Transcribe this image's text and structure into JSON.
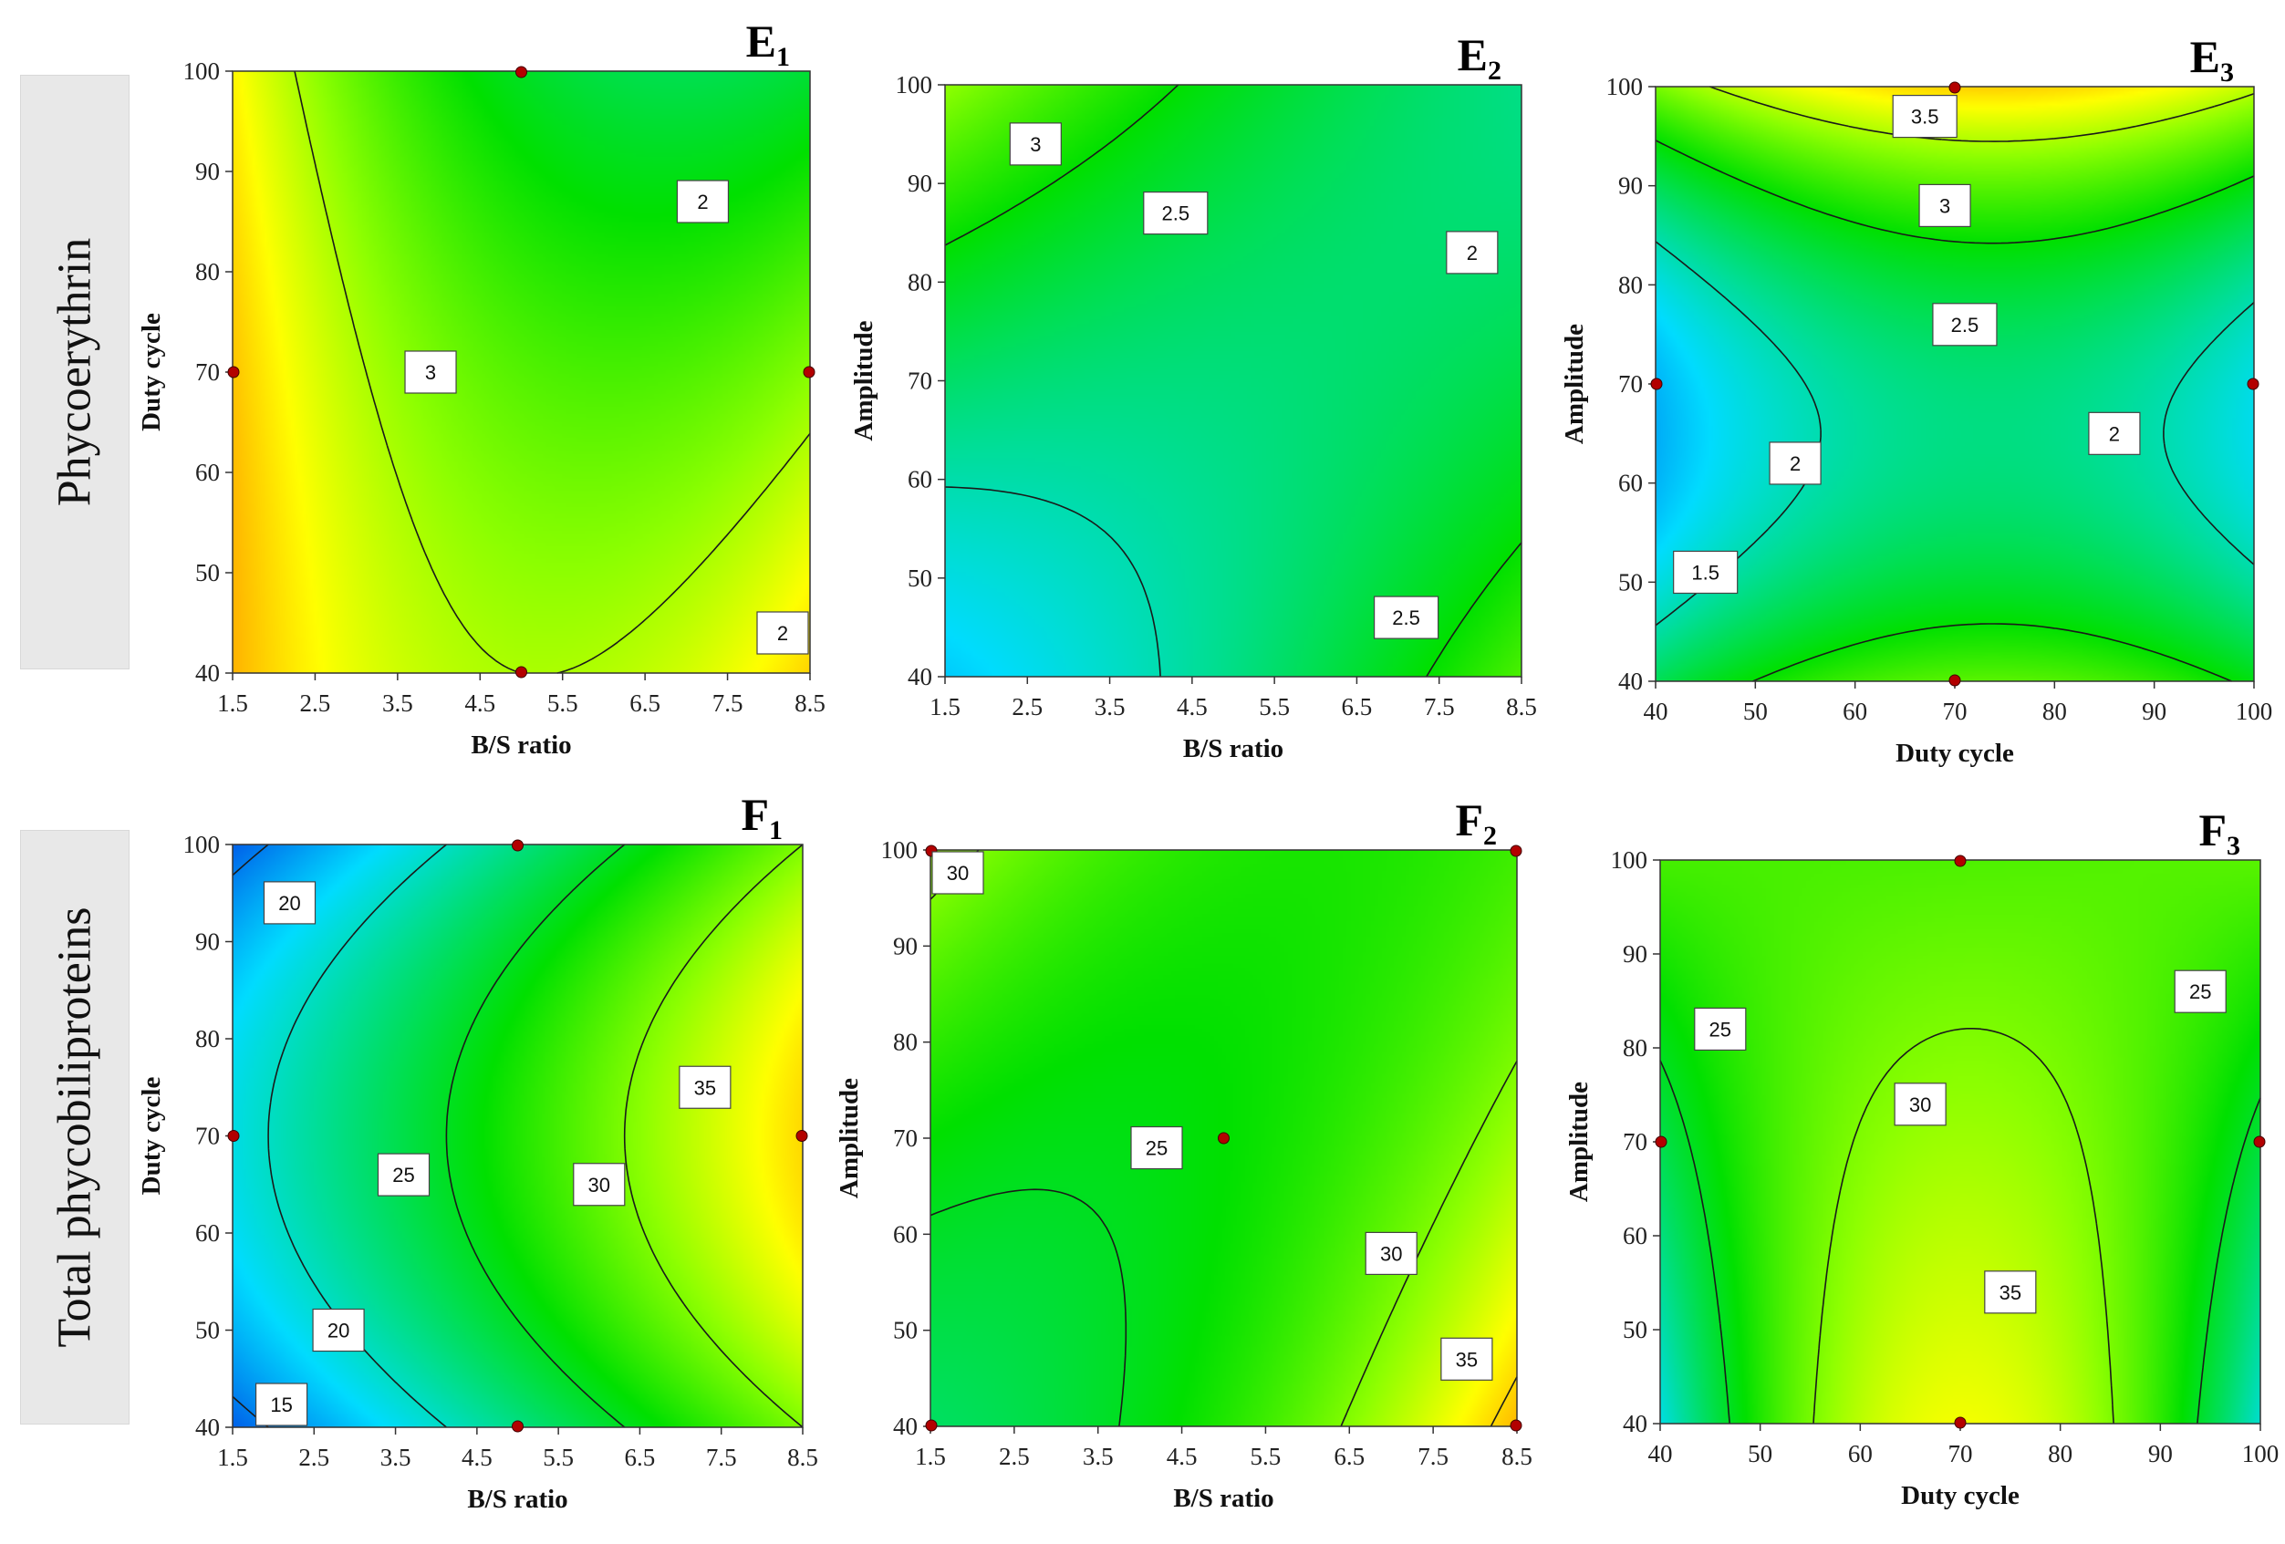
{
  "row_labels": [
    "Phycoerythrin",
    "Total phycobiliproteins"
  ],
  "chart_data": [
    {
      "id": "E1",
      "type": "contour",
      "title_main": "E",
      "title_sub": "1",
      "xlabel": "B/S ratio",
      "ylabel": "Duty cycle",
      "xlim": [
        1.5,
        8.5
      ],
      "ylim": [
        40,
        100
      ],
      "xticks": [
        "1.5",
        "2.5",
        "3.5",
        "4.5",
        "5.5",
        "6.5",
        "7.5",
        "8.5"
      ],
      "yticks": [
        "40",
        "50",
        "60",
        "70",
        "80",
        "90",
        "100"
      ],
      "model": {
        "c": 2.75,
        "x": -0.25,
        "y": -0.3,
        "xx": 0.4,
        "yy": -0.05,
        "xy": -0.2,
        "x3": 0,
        "x2y": 0,
        "xy2": 0
      },
      "zrange": [
        1.2,
        3.8
      ],
      "contours": [
        {
          "level": "3",
          "value": 3,
          "label_at": [
            3.9,
            70
          ]
        },
        {
          "level": "2",
          "value": 2,
          "label_at": [
            7.2,
            87
          ]
        },
        {
          "level": "2",
          "value": 2,
          "label_at": [
            8.2,
            44
          ]
        }
      ],
      "design_points": [
        [
          5,
          100
        ],
        [
          1.5,
          70
        ],
        [
          8.5,
          70
        ],
        [
          5,
          40
        ]
      ]
    },
    {
      "id": "E2",
      "type": "contour",
      "title_main": "E",
      "title_sub": "2",
      "xlabel": "B/S ratio",
      "ylabel": "Amplitude",
      "xlim": [
        1.5,
        8.5
      ],
      "ylim": [
        40,
        100
      ],
      "xticks": [
        "1.5",
        "2.5",
        "3.5",
        "4.5",
        "5.5",
        "6.5",
        "7.5",
        "8.5"
      ],
      "yticks": [
        "40",
        "50",
        "60",
        "70",
        "80",
        "90",
        "100"
      ],
      "model": {
        "c": 2.15,
        "x": 0.05,
        "y": 0.15,
        "xx": 0.1,
        "yy": 0.12,
        "xy": -0.45,
        "x3": 0,
        "x2y": 0,
        "xy2": 0
      },
      "zrange": [
        1.2,
        3.8
      ],
      "contours": [
        {
          "level": "3",
          "value": 3,
          "label_at": [
            2.6,
            94
          ]
        },
        {
          "level": "2.5",
          "value": 2.5,
          "label_at": [
            4.3,
            87
          ]
        },
        {
          "level": "2",
          "value": 2,
          "label_at": [
            7.9,
            83
          ]
        },
        {
          "level": "2.5",
          "value": 2.5,
          "label_at": [
            7.1,
            46
          ]
        }
      ],
      "design_points": []
    },
    {
      "id": "E3",
      "type": "contour",
      "title_main": "E",
      "title_sub": "3",
      "xlabel": "Duty cycle",
      "ylabel": "Amplitude",
      "xlim": [
        40,
        100
      ],
      "ylim": [
        40,
        100
      ],
      "xticks": [
        "40",
        "50",
        "60",
        "70",
        "80",
        "90",
        "100"
      ],
      "yticks": [
        "40",
        "50",
        "60",
        "70",
        "80",
        "90",
        "100"
      ],
      "model": {
        "c": 2.15,
        "x": 0.1,
        "y": 0.3,
        "xx": -0.4,
        "yy": 0.9,
        "xy": 0,
        "x3": 0,
        "x2y": 0,
        "xy2": 0
      },
      "zrange": [
        1.2,
        3.8
      ],
      "contours": [
        {
          "level": "3.5",
          "value": 3.5,
          "label_at": [
            67,
            97
          ]
        },
        {
          "level": "3",
          "value": 3,
          "label_at": [
            69,
            88
          ]
        },
        {
          "level": "2.5",
          "value": 2.5,
          "label_at": [
            71,
            76
          ]
        },
        {
          "level": "2",
          "value": 2,
          "label_at": [
            54,
            62
          ]
        },
        {
          "level": "2",
          "value": 2,
          "label_at": [
            86,
            65
          ]
        },
        {
          "level": "1.5",
          "value": 1.5,
          "label_at": [
            45,
            51
          ]
        }
      ],
      "design_points": [
        [
          70,
          100
        ],
        [
          40,
          70
        ],
        [
          100,
          70
        ],
        [
          70,
          40
        ]
      ]
    },
    {
      "id": "F1",
      "type": "contour",
      "title_main": "F",
      "title_sub": "1",
      "xlabel": "B/S ratio",
      "ylabel": "Duty cycle",
      "xlim": [
        1.5,
        8.5
      ],
      "ylim": [
        40,
        100
      ],
      "xticks": [
        "1.5",
        "2.5",
        "3.5",
        "4.5",
        "5.5",
        "6.5",
        "7.5",
        "8.5"
      ],
      "yticks": [
        "40",
        "50",
        "60",
        "70",
        "80",
        "90",
        "100"
      ],
      "model": {
        "c": 27,
        "x": 8,
        "y": 0,
        "xx": 0,
        "yy": -5,
        "xy": 0,
        "x3": 0,
        "x2y": 0,
        "xy2": 0
      },
      "zrange": [
        12,
        40
      ],
      "contours": [
        {
          "level": "20",
          "value": 20,
          "label_at": [
            2.2,
            94
          ]
        },
        {
          "level": "25",
          "value": 25,
          "label_at": [
            3.6,
            66
          ]
        },
        {
          "level": "30",
          "value": 30,
          "label_at": [
            6.0,
            65
          ]
        },
        {
          "level": "35",
          "value": 35,
          "label_at": [
            7.3,
            75
          ]
        },
        {
          "level": "20",
          "value": 20,
          "label_at": [
            2.8,
            50
          ]
        },
        {
          "level": "15",
          "value": 15,
          "label_at": [
            2.1,
            42
          ]
        }
      ],
      "design_points": [
        [
          5,
          100
        ],
        [
          1.5,
          70
        ],
        [
          8.5,
          70
        ],
        [
          5,
          40
        ]
      ]
    },
    {
      "id": "F2",
      "type": "contour",
      "title_main": "F",
      "title_sub": "2",
      "xlabel": "B/S ratio",
      "ylabel": "Amplitude",
      "xlim": [
        1.5,
        8.5
      ],
      "ylim": [
        40,
        100
      ],
      "xticks": [
        "1.5",
        "2.5",
        "3.5",
        "4.5",
        "5.5",
        "6.5",
        "7.5",
        "8.5"
      ],
      "yticks": [
        "40",
        "50",
        "60",
        "70",
        "80",
        "90",
        "100"
      ],
      "model": {
        "c": 26,
        "x": 2.5,
        "y": 0,
        "xx": 2.5,
        "yy": 1,
        "xy": -4,
        "x3": 0,
        "x2y": 0,
        "xy2": 0
      },
      "zrange": [
        12,
        40
      ],
      "contours": [
        {
          "level": "30",
          "value": 30,
          "label_at": [
            1.8,
            100
          ]
        },
        {
          "level": "25",
          "value": 25,
          "label_at": [
            4.2,
            69
          ]
        },
        {
          "level": "30",
          "value": 30,
          "label_at": [
            7.0,
            58
          ]
        },
        {
          "level": "35",
          "value": 35,
          "label_at": [
            7.9,
            47
          ]
        }
      ],
      "design_points": [
        [
          1.5,
          100
        ],
        [
          8.5,
          100
        ],
        [
          5,
          70
        ],
        [
          1.5,
          40
        ],
        [
          8.5,
          40
        ]
      ]
    },
    {
      "id": "F3",
      "type": "contour",
      "title_main": "F",
      "title_sub": "3",
      "xlabel": "Duty cycle",
      "ylabel": "Amplitude",
      "xlim": [
        40,
        100
      ],
      "ylim": [
        40,
        100
      ],
      "xticks": [
        "40",
        "50",
        "60",
        "70",
        "80",
        "90",
        "100"
      ],
      "yticks": [
        "40",
        "50",
        "60",
        "70",
        "80",
        "90",
        "100"
      ],
      "model": {
        "c": 31,
        "x": 0.3,
        "y": -2.5,
        "xx": -7,
        "yy": 0,
        "xy": 0,
        "x3": 0,
        "x2y": 7,
        "xy2": 0
      },
      "zrange": [
        12,
        40
      ],
      "contours": [
        {
          "level": "25",
          "value": 25,
          "label_at": [
            46,
            82
          ]
        },
        {
          "level": "30",
          "value": 30,
          "label_at": [
            66,
            74
          ]
        },
        {
          "level": "25",
          "value": 25,
          "label_at": [
            94,
            86
          ]
        },
        {
          "level": "35",
          "value": 35,
          "label_at": [
            75,
            54
          ]
        }
      ],
      "design_points": [
        [
          70,
          100
        ],
        [
          40,
          70
        ],
        [
          100,
          70
        ],
        [
          70,
          40
        ]
      ]
    }
  ]
}
